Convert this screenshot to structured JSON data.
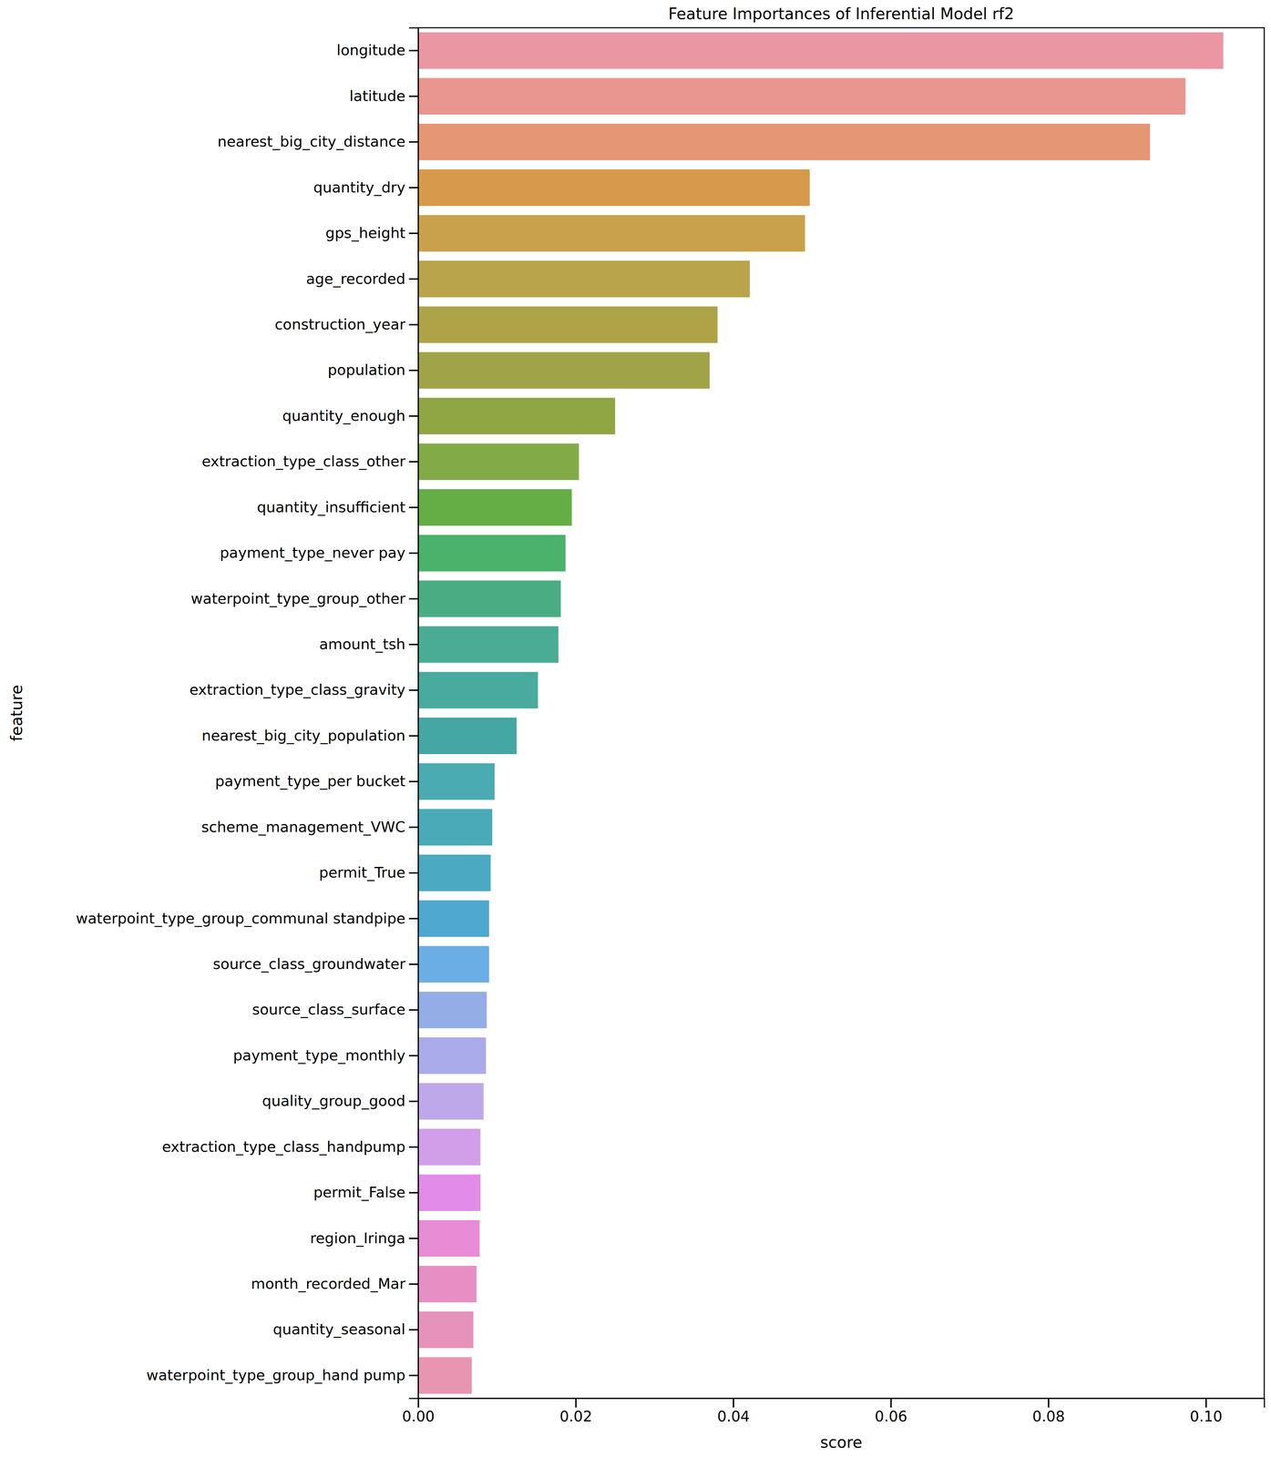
{
  "chart_data": {
    "type": "bar",
    "orientation": "horizontal",
    "title": "Feature Importances of Inferential Model rf2",
    "x_label": "score",
    "y_label": "feature",
    "categories": [
      "longitude",
      "latitude",
      "nearest_big_city_distance",
      "quantity_dry",
      "gps_height",
      "age_recorded",
      "construction_year",
      "population",
      "quantity_enough",
      "extraction_type_class_other",
      "quantity_insufficient",
      "payment_type_never pay",
      "waterpoint_type_group_other",
      "amount_tsh",
      "extraction_type_class_gravity",
      "nearest_big_city_population",
      "payment_type_per bucket",
      "scheme_management_VWC",
      "permit_True",
      "waterpoint_type_group_communal standpipe",
      "source_class_groundwater",
      "source_class_surface",
      "payment_type_monthly",
      "quality_group_good",
      "extraction_type_class_handpump",
      "permit_False",
      "region_Iringa",
      "month_recorded_Mar",
      "quantity_seasonal",
      "waterpoint_type_group_hand pump"
    ],
    "values": [
      0.1022,
      0.0974,
      0.0929,
      0.0497,
      0.0491,
      0.0421,
      0.038,
      0.037,
      0.025,
      0.0204,
      0.0195,
      0.0187,
      0.0181,
      0.0178,
      0.0152,
      0.0125,
      0.0097,
      0.0094,
      0.0092,
      0.009,
      0.009,
      0.0087,
      0.0086,
      0.0083,
      0.0079,
      0.0079,
      0.0078,
      0.0074,
      0.007,
      0.0068
    ],
    "colors": [
      "#ea96a3",
      "#e8968f",
      "#e59674",
      "#d69a4a",
      "#c8a14a",
      "#b9a44b",
      "#aea347",
      "#a0a347",
      "#90a543",
      "#82ab47",
      "#64ae45",
      "#4ab26b",
      "#4aad82",
      "#4aad93",
      "#49ab9d",
      "#45a7a3",
      "#4aabb2",
      "#4aabb8",
      "#4ba9c1",
      "#4fa8d0",
      "#6baee6",
      "#94ade6",
      "#aaabeb",
      "#bea8ea",
      "#d39ee9",
      "#e28be9",
      "#e88cd6",
      "#e78ec4",
      "#e692bb",
      "#e895b1"
    ],
    "xlim": [
      0,
      0.1074
    ],
    "xticks": [
      {
        "value": 0,
        "label": "0.00"
      },
      {
        "value": 0.02,
        "label": "0.02"
      },
      {
        "value": 0.04,
        "label": "0.04"
      },
      {
        "value": 0.06,
        "label": "0.06"
      },
      {
        "value": 0.08,
        "label": "0.08"
      },
      {
        "value": 0.1,
        "label": "0.10"
      }
    ],
    "grid": false
  }
}
